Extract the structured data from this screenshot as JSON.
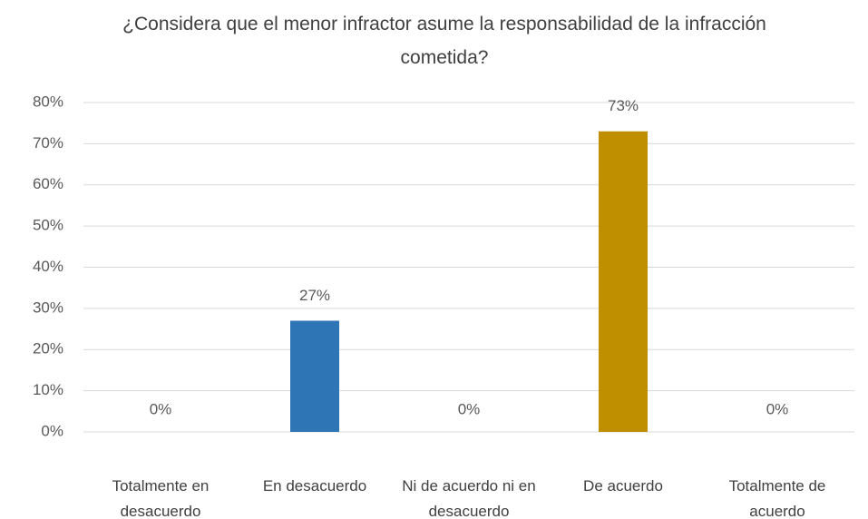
{
  "chart_data": {
    "type": "bar",
    "title": "¿Considera que el menor infractor asume la responsabilidad de la infracción cometida?",
    "categories": [
      "Totalmente en desacuerdo",
      "En desacuerdo",
      "Ni de acuerdo ni en desacuerdo",
      "De acuerdo",
      "Totalmente de acuerdo"
    ],
    "values": [
      0,
      27,
      0,
      73,
      0
    ],
    "value_labels": [
      "0%",
      "27%",
      "0%",
      "73%",
      "0%"
    ],
    "colors": [
      "#2e75b6",
      "#2e75b6",
      "#a5a5a5",
      "#bf8f00",
      "#5b9bd5"
    ],
    "ylim": [
      0,
      80
    ],
    "yticks": [
      {
        "value": 0,
        "label": "0%"
      },
      {
        "value": 10,
        "label": "10%"
      },
      {
        "value": 20,
        "label": "20%"
      },
      {
        "value": 30,
        "label": "30%"
      },
      {
        "value": 40,
        "label": "40%"
      },
      {
        "value": 50,
        "label": "50%"
      },
      {
        "value": 60,
        "label": "60%"
      },
      {
        "value": 70,
        "label": "70%"
      },
      {
        "value": 80,
        "label": "80%"
      }
    ],
    "grid": true
  }
}
